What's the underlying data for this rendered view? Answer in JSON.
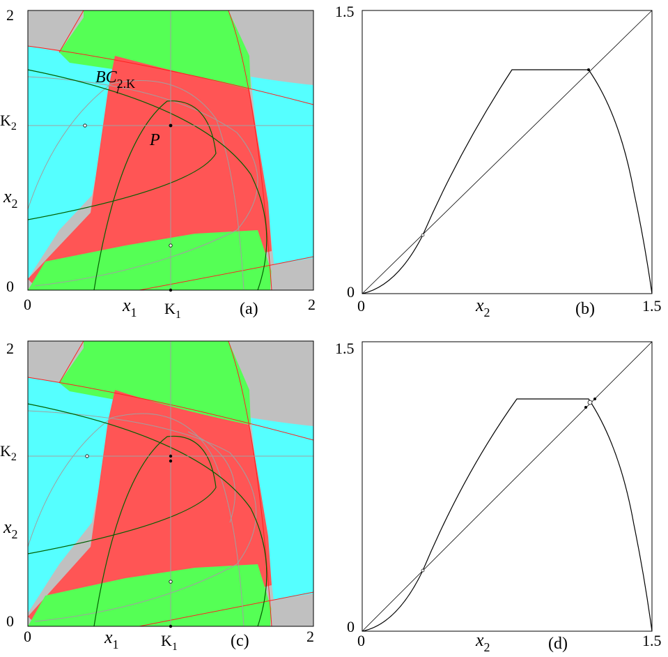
{
  "colors": {
    "gray": "#c0c0c0",
    "green": "#55ff55",
    "red": "#ff5555",
    "cyan": "#55ffff",
    "curve_gray": "#a0a0a0",
    "curve_darkgreen": "#006000",
    "curve_red": "#ff2020",
    "curve_black": "#000000"
  },
  "panel_a": {
    "y_top": "2",
    "y_zero": "0",
    "y_k": "K",
    "y_k_sub": "2",
    "y_label": "x",
    "y_label_sub": "2",
    "x_zero": "0",
    "x_label": "x",
    "x_label_sub": "1",
    "x_k": "K",
    "x_k_sub": "1",
    "x_right": "2",
    "tag": "(a)",
    "ann_bc": "BC",
    "ann_bc_sub": "2.K",
    "ann_p": "P"
  },
  "panel_b": {
    "y_top": "1.5",
    "y_zero": "0",
    "x_zero": "0",
    "x_label": "x",
    "x_label_sub": "2",
    "tag": "(b)",
    "x_right": "1.5"
  },
  "panel_c": {
    "y_top": "2",
    "y_zero": "0",
    "y_k": "K",
    "y_k_sub": "2",
    "y_label": "x",
    "y_label_sub": "2",
    "x_zero": "0",
    "x_label": "x",
    "x_label_sub": "1",
    "x_k": "K",
    "x_k_sub": "1",
    "tag": "(c)",
    "x_right": "2"
  },
  "panel_d": {
    "y_top": "1.5",
    "y_zero": "0",
    "x_zero": "0",
    "x_label": "x",
    "x_label_sub": "2",
    "tag": "(d)",
    "x_right": "1.5"
  },
  "chart_data": [
    {
      "type": "area",
      "panel": "(a)",
      "xlim": [
        0,
        2
      ],
      "ylim": [
        0,
        2
      ],
      "ticks_x": [
        "0",
        "K1",
        "2"
      ],
      "ticks_y": [
        "0",
        "K2",
        "2"
      ],
      "regions": [
        "gray",
        "green",
        "red",
        "cyan"
      ],
      "points": [
        {
          "name": "P",
          "x": 1.0,
          "y": 1.15
        },
        {
          "x": 0.4,
          "y": 1.15
        },
        {
          "x": 1.0,
          "y": 0.31
        },
        {
          "x": 1.0,
          "y": 0.0
        }
      ]
    },
    {
      "type": "line",
      "panel": "(b)",
      "xlim": [
        0,
        1.5
      ],
      "ylim": [
        0,
        1.5
      ],
      "series": [
        {
          "x": [
            0,
            0.3,
            0.6,
            0.78,
            1.17,
            1.3,
            1.4,
            1.5
          ],
          "y": [
            0,
            0.08,
            0.42,
            1.16,
            1.16,
            0.85,
            0.5,
            0
          ]
        },
        {
          "x": [
            0,
            1.5
          ],
          "y": [
            0,
            1.5
          ]
        }
      ],
      "points": [
        {
          "x": 0.31,
          "y": 0.31
        },
        {
          "x": 1.17,
          "y": 1.16
        }
      ]
    },
    {
      "type": "area",
      "panel": "(c)",
      "xlim": [
        0,
        2
      ],
      "ylim": [
        0,
        2
      ],
      "ticks_x": [
        "0",
        "K1",
        "2"
      ],
      "ticks_y": [
        "0",
        "K2",
        "2"
      ],
      "regions": [
        "gray",
        "green",
        "red",
        "cyan"
      ],
      "points": [
        {
          "x": 1.0,
          "y": 1.2
        },
        {
          "x": 1.0,
          "y": 1.17
        },
        {
          "x": 0.4,
          "y": 1.2
        },
        {
          "x": 1.0,
          "y": 0.31
        },
        {
          "x": 1.0,
          "y": 0.0
        }
      ]
    },
    {
      "type": "line",
      "panel": "(d)",
      "xlim": [
        0,
        1.5
      ],
      "ylim": [
        0,
        1.5
      ],
      "series": [
        {
          "x": [
            0,
            0.3,
            0.6,
            0.81,
            1.18,
            1.3,
            1.4,
            1.5
          ],
          "y": [
            0,
            0.08,
            0.42,
            1.2,
            1.2,
            0.87,
            0.5,
            0
          ]
        },
        {
          "x": [
            0,
            1.5
          ],
          "y": [
            0,
            1.5
          ]
        }
      ],
      "points": [
        {
          "x": 0.31,
          "y": 0.31
        },
        {
          "x": 1.16,
          "y": 1.16
        },
        {
          "x": 1.2,
          "y": 1.2
        },
        {
          "x": 1.14,
          "y": 1.12
        }
      ]
    }
  ]
}
